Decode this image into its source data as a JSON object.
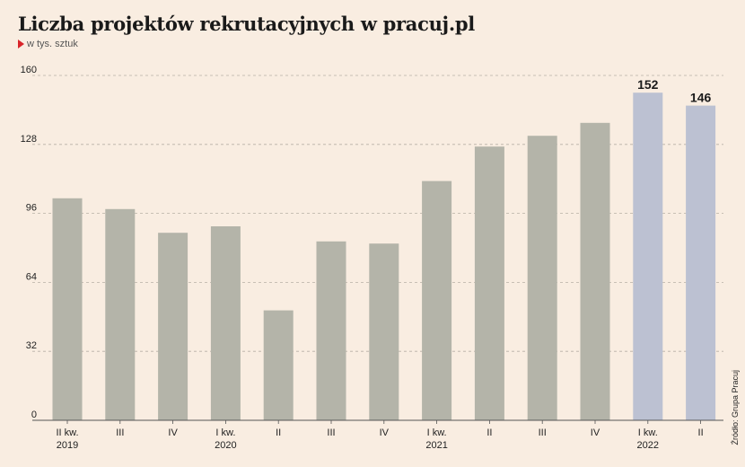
{
  "title": "Liczba projektów rekrutacyjnych w pracuj.pl",
  "subtitle": "w tys. sztuk",
  "source": "Źródło: Grupa Pracuj",
  "colors": {
    "bar": "#b4b4a9",
    "highlight": "#bcc1d2",
    "grid": "#b7b0a6",
    "marker": "#d9252a"
  },
  "chart_data": {
    "type": "bar",
    "title": "Liczba projektów rekrutacyjnych w pracuj.pl",
    "subtitle": "w tys. sztuk",
    "categories": [
      [
        "II kw.",
        "2019"
      ],
      [
        "III"
      ],
      [
        "IV"
      ],
      [
        "I kw.",
        "2020"
      ],
      [
        "II"
      ],
      [
        "III"
      ],
      [
        "IV"
      ],
      [
        "I kw.",
        "2021"
      ],
      [
        "II"
      ],
      [
        "III"
      ],
      [
        "IV"
      ],
      [
        "I kw.",
        "2022"
      ],
      [
        "II"
      ]
    ],
    "values": [
      103,
      98,
      87,
      90,
      51,
      83,
      82,
      111,
      127,
      132,
      138,
      152,
      146
    ],
    "highlighted": [
      false,
      false,
      false,
      false,
      false,
      false,
      false,
      false,
      false,
      false,
      false,
      true,
      true
    ],
    "data_labels": [
      null,
      null,
      null,
      null,
      null,
      null,
      null,
      null,
      null,
      null,
      null,
      "152",
      "146"
    ],
    "yticks": [
      0,
      32,
      64,
      96,
      128,
      160
    ],
    "ylim": [
      0,
      160
    ],
    "grid": true
  }
}
